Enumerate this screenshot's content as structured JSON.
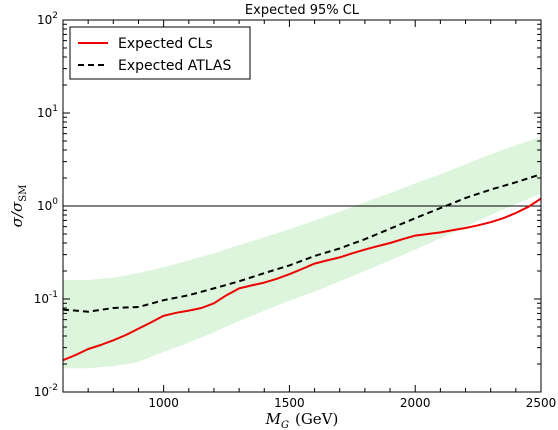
{
  "chart_data": {
    "type": "line",
    "title": "Expected 95% CL",
    "xlabel": "M_G (GeV)",
    "ylabel": "σ/σ_SM",
    "xlim": [
      600,
      2500
    ],
    "ylim": [
      0.01,
      100
    ],
    "yscale": "log",
    "x_ticks": [
      "1000",
      "1500",
      "2000",
      "2500"
    ],
    "y_ticks": [
      {
        "value": 0.01,
        "base": "10",
        "exp": "-2"
      },
      {
        "value": 0.1,
        "base": "10",
        "exp": "-1"
      },
      {
        "value": 1,
        "base": "10",
        "exp": "0"
      },
      {
        "value": 10,
        "base": "10",
        "exp": "1"
      },
      {
        "value": 100,
        "base": "10",
        "exp": "2"
      }
    ],
    "reference_line": 1,
    "legend_position": "top-left",
    "series": [
      {
        "name": "Expected CLs",
        "color": "#ee0000",
        "style": "solid",
        "x": [
          600,
          650,
          700,
          750,
          800,
          850,
          900,
          950,
          1000,
          1050,
          1100,
          1150,
          1200,
          1250,
          1300,
          1350,
          1400,
          1450,
          1500,
          1550,
          1600,
          1650,
          1700,
          1750,
          1800,
          1850,
          1900,
          1950,
          2000,
          2050,
          2100,
          2150,
          2200,
          2250,
          2300,
          2350,
          2400,
          2450,
          2500
        ],
        "y": [
          0.022,
          0.025,
          0.029,
          0.032,
          0.036,
          0.041,
          0.048,
          0.056,
          0.066,
          0.071,
          0.075,
          0.08,
          0.09,
          0.11,
          0.13,
          0.14,
          0.15,
          0.165,
          0.185,
          0.21,
          0.24,
          0.26,
          0.28,
          0.31,
          0.34,
          0.37,
          0.4,
          0.44,
          0.48,
          0.5,
          0.52,
          0.55,
          0.58,
          0.62,
          0.67,
          0.74,
          0.84,
          0.98,
          1.2
        ]
      },
      {
        "name": "Expected ATLAS",
        "color": "#000000",
        "style": "dashed",
        "x": [
          600,
          700,
          800,
          900,
          1000,
          1100,
          1200,
          1300,
          1400,
          1500,
          1600,
          1700,
          1800,
          1900,
          2000,
          2100,
          2200,
          2300,
          2400,
          2500
        ],
        "y": [
          0.077,
          0.073,
          0.08,
          0.082,
          0.097,
          0.11,
          0.13,
          0.155,
          0.19,
          0.23,
          0.29,
          0.35,
          0.44,
          0.57,
          0.74,
          0.95,
          1.22,
          1.5,
          1.8,
          2.2
        ]
      }
    ],
    "band": {
      "color": "#dcf5dc",
      "x": [
        600,
        700,
        800,
        900,
        1000,
        1100,
        1200,
        1300,
        1400,
        1500,
        1600,
        1700,
        1800,
        1900,
        2000,
        2100,
        2200,
        2300,
        2400,
        2500
      ],
      "lower": [
        0.018,
        0.018,
        0.019,
        0.021,
        0.027,
        0.034,
        0.044,
        0.058,
        0.075,
        0.096,
        0.12,
        0.155,
        0.2,
        0.26,
        0.34,
        0.45,
        0.6,
        0.8,
        1.05,
        1.35
      ],
      "upper": [
        0.16,
        0.16,
        0.17,
        0.19,
        0.22,
        0.26,
        0.31,
        0.38,
        0.46,
        0.56,
        0.7,
        0.87,
        1.1,
        1.38,
        1.75,
        2.2,
        2.8,
        3.6,
        4.5,
        5.5
      ]
    }
  }
}
